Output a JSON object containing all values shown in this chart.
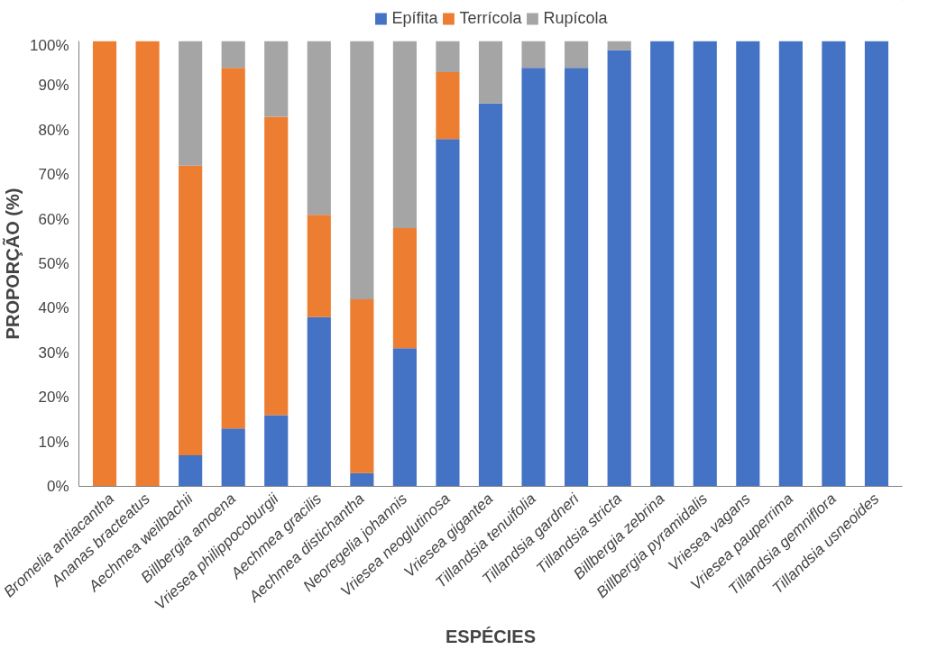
{
  "chart_data": {
    "type": "bar",
    "stacked": true,
    "xlabel": "ESPÉCIES",
    "ylabel": "PROPORÇÃO (%)",
    "categories": [
      "Bromelia antiacantha",
      "Ananas bracteatus",
      "Aechmea weilbachii",
      "Billbergia amoena",
      "Vriesea philippocoburgii",
      "Aechmea gracilis",
      "Aechmea distichantha",
      "Neoregelia johannis",
      "Vriesea neoglutinosa",
      "Vriesea gigantea",
      "Tillandsia tenuifolia",
      "Tillandsia gardneri",
      "Tillandsia stricta",
      "Billbergia zebrina",
      "Billbergia pyramidalis",
      "Vriesea vagans",
      "Vriesea pauperrima",
      "Tillandsia gemniflora",
      "Tillandsia usneoides"
    ],
    "series": [
      {
        "name": "Epífita",
        "color": "#4472c4",
        "values": [
          0,
          0,
          7,
          13,
          16,
          38,
          3,
          31,
          78,
          86,
          94,
          94,
          98,
          100,
          100,
          100,
          100,
          100,
          100
        ]
      },
      {
        "name": "Terrícola",
        "color": "#ed7d31",
        "values": [
          100,
          100,
          65,
          81,
          67,
          23,
          39,
          27,
          15,
          0,
          0,
          0,
          0,
          0,
          0,
          0,
          0,
          0,
          0
        ]
      },
      {
        "name": "Rupícola",
        "color": "#a5a5a5",
        "values": [
          0,
          0,
          28,
          6,
          17,
          39,
          58,
          42,
          7,
          14,
          6,
          6,
          2,
          0,
          0,
          0,
          0,
          0,
          0
        ]
      }
    ],
    "ylim": [
      0,
      100
    ],
    "yticks": [
      {
        "value": 0,
        "label": "0%"
      },
      {
        "value": 10,
        "label": "10%"
      },
      {
        "value": 20,
        "label": "20%"
      },
      {
        "value": 30,
        "label": "30%"
      },
      {
        "value": 40,
        "label": "40%"
      },
      {
        "value": 50,
        "label": "50%"
      },
      {
        "value": 60,
        "label": "60%"
      },
      {
        "value": 70,
        "label": "70%"
      },
      {
        "value": 80,
        "label": "80%"
      },
      {
        "value": 90,
        "label": "90%"
      },
      {
        "value": 100,
        "label": "100%"
      }
    ],
    "grid": false,
    "legend": "top"
  }
}
